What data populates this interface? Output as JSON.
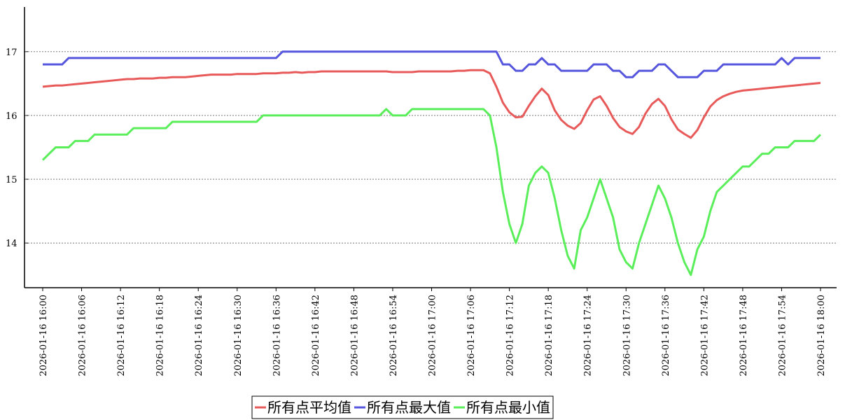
{
  "chart_data": {
    "type": "line",
    "categories": [
      "2026-01-16 16:00",
      null,
      null,
      null,
      null,
      null,
      "2026-01-16 16:06",
      null,
      null,
      null,
      null,
      null,
      "2026-01-16 16:12",
      null,
      null,
      null,
      null,
      null,
      "2026-01-16 16:18",
      null,
      null,
      null,
      null,
      null,
      "2026-01-16 16:24",
      null,
      null,
      null,
      null,
      null,
      "2026-01-16 16:30",
      null,
      null,
      null,
      null,
      null,
      "2026-01-16 16:36",
      null,
      null,
      null,
      null,
      null,
      "2026-01-16 16:42",
      null,
      null,
      null,
      null,
      null,
      "2026-01-16 16:48",
      null,
      null,
      null,
      null,
      null,
      "2026-01-16 16:54",
      null,
      null,
      null,
      null,
      null,
      "2026-01-16 17:00",
      null,
      null,
      null,
      null,
      null,
      "2026-01-16 17:06",
      null,
      null,
      null,
      null,
      null,
      "2026-01-16 17:12",
      null,
      null,
      null,
      null,
      null,
      "2026-01-16 17:18",
      null,
      null,
      null,
      null,
      null,
      "2026-01-16 17:24",
      null,
      null,
      null,
      null,
      null,
      "2026-01-16 17:30",
      null,
      null,
      null,
      null,
      null,
      "2026-01-16 17:36",
      null,
      null,
      null,
      null,
      null,
      "2026-01-16 17:42",
      null,
      null,
      null,
      null,
      null,
      "2026-01-16 17:48",
      null,
      null,
      null,
      null,
      null,
      "2026-01-16 17:54",
      null,
      null,
      null,
      null,
      null,
      "2026-01-16 18:00"
    ],
    "series": [
      {
        "name": "所有点平均值",
        "color": "#e85a5a",
        "values": [
          16.45,
          16.46,
          16.47,
          16.47,
          16.48,
          16.49,
          16.5,
          16.51,
          16.52,
          16.53,
          16.54,
          16.55,
          16.56,
          16.57,
          16.57,
          16.58,
          16.58,
          16.58,
          16.59,
          16.59,
          16.6,
          16.6,
          16.6,
          16.61,
          16.62,
          16.63,
          16.64,
          16.64,
          16.64,
          16.64,
          16.65,
          16.65,
          16.65,
          16.65,
          16.66,
          16.66,
          16.66,
          16.67,
          16.67,
          16.68,
          16.67,
          16.68,
          16.68,
          16.69,
          16.69,
          16.69,
          16.69,
          16.69,
          16.69,
          16.69,
          16.69,
          16.69,
          16.69,
          16.69,
          16.68,
          16.68,
          16.68,
          16.68,
          16.69,
          16.69,
          16.69,
          16.69,
          16.69,
          16.69,
          16.7,
          16.7,
          16.71,
          16.71,
          16.71,
          16.66,
          16.45,
          16.2,
          16.05,
          15.97,
          15.98,
          16.15,
          16.3,
          16.42,
          16.32,
          16.08,
          15.93,
          15.84,
          15.79,
          15.88,
          16.08,
          16.25,
          16.3,
          16.15,
          15.96,
          15.82,
          15.75,
          15.71,
          15.82,
          16.03,
          16.18,
          16.26,
          16.15,
          15.94,
          15.78,
          15.71,
          15.65,
          15.77,
          15.97,
          16.14,
          16.24,
          16.3,
          16.34,
          16.37,
          16.39,
          16.4,
          16.41,
          16.42,
          16.43,
          16.44,
          16.45,
          16.46,
          16.47,
          16.48,
          16.49,
          16.5,
          16.51
        ]
      },
      {
        "name": "所有点最大值",
        "color": "#5555dd",
        "values": [
          16.8,
          16.8,
          16.8,
          16.8,
          16.9,
          16.9,
          16.9,
          16.9,
          16.9,
          16.9,
          16.9,
          16.9,
          16.9,
          16.9,
          16.9,
          16.9,
          16.9,
          16.9,
          16.9,
          16.9,
          16.9,
          16.9,
          16.9,
          16.9,
          16.9,
          16.9,
          16.9,
          16.9,
          16.9,
          16.9,
          16.9,
          16.9,
          16.9,
          16.9,
          16.9,
          16.9,
          16.9,
          17.0,
          17.0,
          17.0,
          17.0,
          17.0,
          17.0,
          17.0,
          17.0,
          17.0,
          17.0,
          17.0,
          17.0,
          17.0,
          17.0,
          17.0,
          17.0,
          17.0,
          17.0,
          17.0,
          17.0,
          17.0,
          17.0,
          17.0,
          17.0,
          17.0,
          17.0,
          17.0,
          17.0,
          17.0,
          17.0,
          17.0,
          17.0,
          17.0,
          17.0,
          16.8,
          16.8,
          16.7,
          16.7,
          16.8,
          16.8,
          16.9,
          16.8,
          16.8,
          16.7,
          16.7,
          16.7,
          16.7,
          16.7,
          16.8,
          16.8,
          16.8,
          16.7,
          16.7,
          16.6,
          16.6,
          16.7,
          16.7,
          16.7,
          16.8,
          16.8,
          16.7,
          16.6,
          16.6,
          16.6,
          16.6,
          16.7,
          16.7,
          16.7,
          16.8,
          16.8,
          16.8,
          16.8,
          16.8,
          16.8,
          16.8,
          16.8,
          16.8,
          16.9,
          16.8,
          16.9,
          16.9,
          16.9,
          16.9,
          16.9
        ]
      },
      {
        "name": "所有点最小值",
        "color": "#5aee5a",
        "values": [
          15.3,
          15.4,
          15.5,
          15.5,
          15.5,
          15.6,
          15.6,
          15.6,
          15.7,
          15.7,
          15.7,
          15.7,
          15.7,
          15.7,
          15.8,
          15.8,
          15.8,
          15.8,
          15.8,
          15.8,
          15.9,
          15.9,
          15.9,
          15.9,
          15.9,
          15.9,
          15.9,
          15.9,
          15.9,
          15.9,
          15.9,
          15.9,
          15.9,
          15.9,
          16.0,
          16.0,
          16.0,
          16.0,
          16.0,
          16.0,
          16.0,
          16.0,
          16.0,
          16.0,
          16.0,
          16.0,
          16.0,
          16.0,
          16.0,
          16.0,
          16.0,
          16.0,
          16.0,
          16.1,
          16.0,
          16.0,
          16.0,
          16.1,
          16.1,
          16.1,
          16.1,
          16.1,
          16.1,
          16.1,
          16.1,
          16.1,
          16.1,
          16.1,
          16.1,
          16.0,
          15.5,
          14.8,
          14.3,
          14.0,
          14.3,
          14.9,
          15.1,
          15.2,
          15.1,
          14.7,
          14.2,
          13.8,
          13.6,
          14.2,
          14.4,
          14.7,
          15.0,
          14.7,
          14.4,
          13.9,
          13.7,
          13.6,
          14.0,
          14.3,
          14.6,
          14.9,
          14.7,
          14.4,
          14.0,
          13.7,
          13.5,
          13.9,
          14.1,
          14.5,
          14.8,
          14.9,
          15.0,
          15.1,
          15.2,
          15.2,
          15.3,
          15.4,
          15.4,
          15.5,
          15.5,
          15.5,
          15.6,
          15.6,
          15.6,
          15.6,
          15.7
        ]
      }
    ],
    "ylim": [
      13.3,
      17.7
    ],
    "yticks": [
      14,
      15,
      16,
      17
    ],
    "grid": true,
    "legend": "bottom"
  }
}
